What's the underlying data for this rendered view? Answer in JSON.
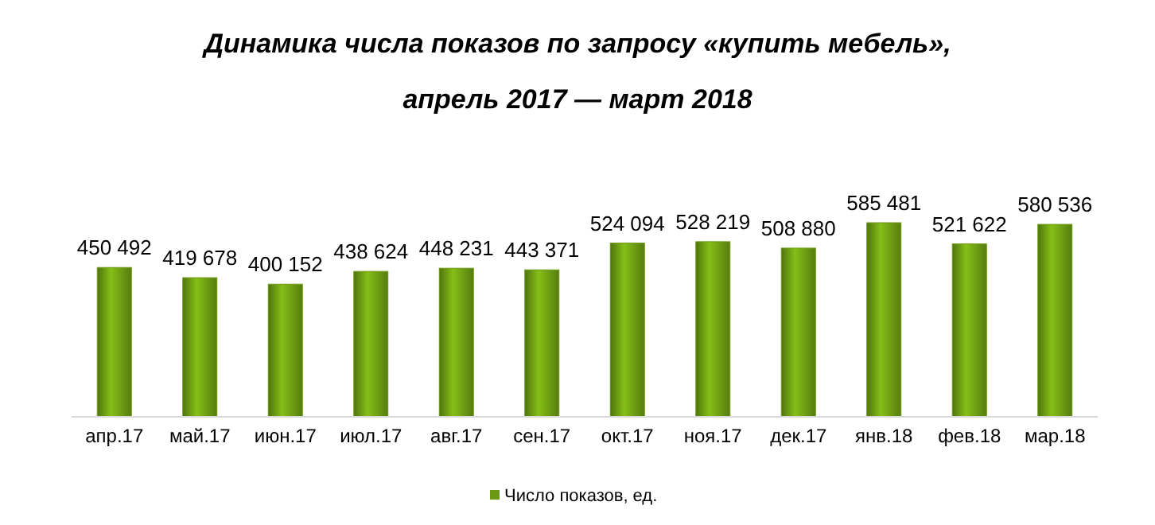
{
  "chart_data": {
    "type": "bar",
    "title": "Динамика числа показов по запросу «купить мебель»,",
    "subtitle": "апрель 2017 — март 2018",
    "categories": [
      "апр.17",
      "май.17",
      "июн.17",
      "июл.17",
      "авг.17",
      "сен.17",
      "окт.17",
      "ноя.17",
      "дек.17",
      "янв.18",
      "фев.18",
      "мар.18"
    ],
    "series": [
      {
        "name": "Число показов, ед.",
        "color": "#6b9a12",
        "values": [
          450492,
          419678,
          400152,
          438624,
          448231,
          443371,
          524094,
          528219,
          508880,
          585481,
          521622,
          580536
        ],
        "value_labels": [
          "450 492",
          "419 678",
          "400 152",
          "438 624",
          "448 231",
          "443 371",
          "524 094",
          "528 219",
          "508 880",
          "585 481",
          "521 622",
          "580 536"
        ]
      }
    ],
    "legend": "bottom",
    "grid": false
  }
}
